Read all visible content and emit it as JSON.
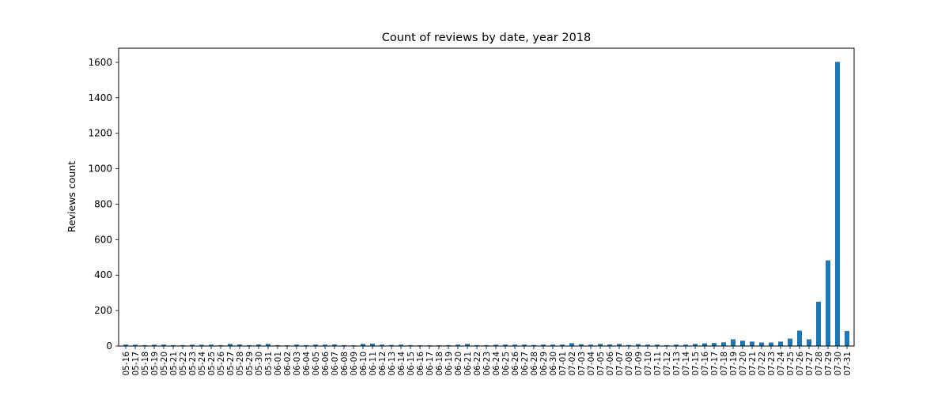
{
  "chart_data": {
    "type": "bar",
    "title": "Count of reviews by date, year 2018",
    "xlabel": "",
    "ylabel": "Reviews count",
    "ylim": [
      0,
      1680
    ],
    "yticks": [
      0,
      200,
      400,
      600,
      800,
      1000,
      1200,
      1400,
      1600
    ],
    "grid": false,
    "bar_color": "#1f77b4",
    "categories": [
      "05-16",
      "05-17",
      "05-18",
      "05-19",
      "05-20",
      "05-21",
      "05-22",
      "05-23",
      "05-24",
      "05-25",
      "05-26",
      "05-27",
      "05-28",
      "05-29",
      "05-30",
      "05-31",
      "06-01",
      "06-02",
      "06-03",
      "06-04",
      "06-05",
      "06-06",
      "06-07",
      "06-08",
      "06-09",
      "06-10",
      "06-11",
      "06-12",
      "06-13",
      "06-14",
      "06-15",
      "06-16",
      "06-17",
      "06-18",
      "06-19",
      "06-20",
      "06-21",
      "06-22",
      "06-23",
      "06-24",
      "06-25",
      "06-26",
      "06-27",
      "06-28",
      "06-29",
      "06-30",
      "07-01",
      "07-02",
      "07-03",
      "07-04",
      "07-05",
      "07-06",
      "07-07",
      "07-08",
      "07-09",
      "07-10",
      "07-11",
      "07-12",
      "07-13",
      "07-14",
      "07-15",
      "07-16",
      "07-17",
      "07-18",
      "07-19",
      "07-20",
      "07-21",
      "07-22",
      "07-23",
      "07-24",
      "07-25",
      "07-26",
      "07-27",
      "07-28",
      "07-29",
      "07-30",
      "07-31"
    ],
    "values": [
      8,
      7,
      5,
      7,
      8,
      5,
      5,
      7,
      7,
      8,
      5,
      12,
      9,
      5,
      9,
      12,
      5,
      4,
      8,
      5,
      8,
      8,
      9,
      5,
      4,
      12,
      13,
      8,
      6,
      8,
      5,
      4,
      4,
      4,
      5,
      8,
      12,
      5,
      5,
      7,
      8,
      8,
      8,
      6,
      8,
      8,
      8,
      16,
      10,
      8,
      12,
      9,
      12,
      6,
      11,
      8,
      8,
      5,
      8,
      8,
      12,
      15,
      17,
      21,
      38,
      30,
      25,
      20,
      20,
      25,
      42,
      87,
      38,
      250,
      483,
      1603,
      85
    ]
  }
}
